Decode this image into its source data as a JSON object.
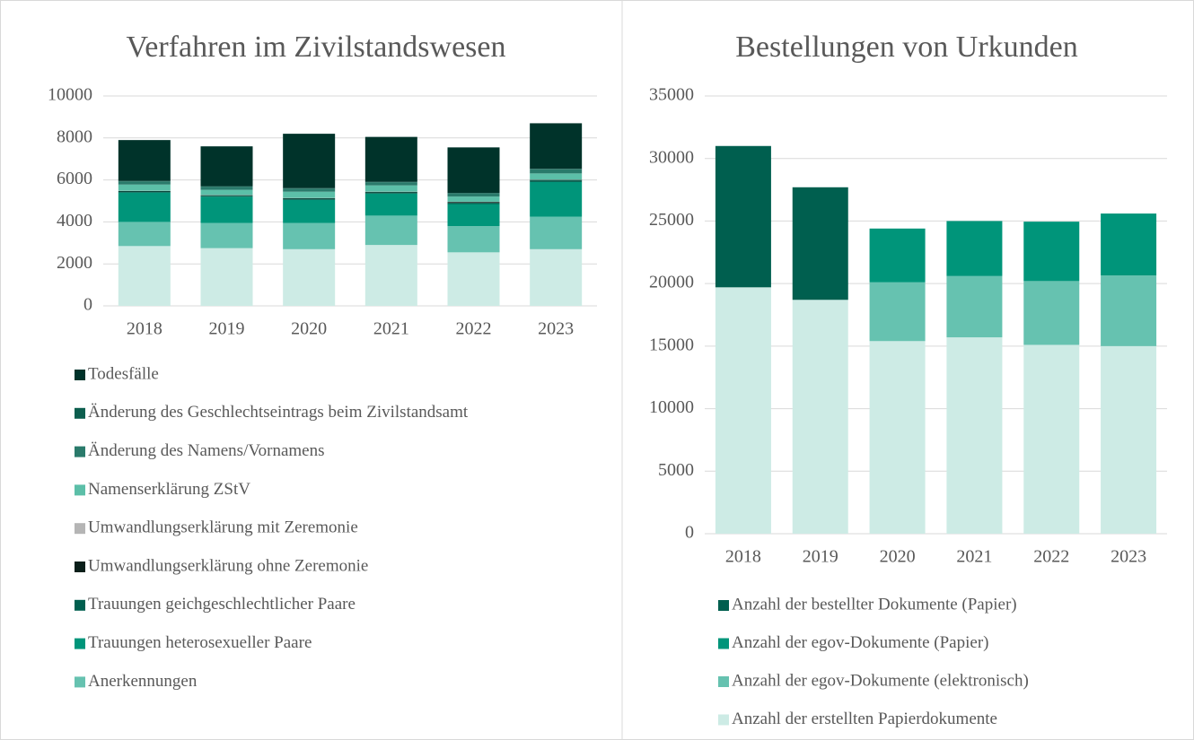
{
  "chart_data": [
    {
      "type": "stacked_bar",
      "title": "Verfahren im Zivilstandswesen",
      "categories": [
        "2018",
        "2019",
        "2020",
        "2021",
        "2022",
        "2023"
      ],
      "ylim": [
        0,
        10000
      ],
      "yticks": [
        0,
        2000,
        4000,
        6000,
        8000,
        10000
      ],
      "grid": true,
      "legend": "bottom",
      "series": [
        {
          "name": null,
          "color": "#cdebe5",
          "values": [
            2850,
            2750,
            2700,
            2900,
            2550,
            2700
          ]
        },
        {
          "name": "Anerkennungen",
          "color": "#66c2b0",
          "values": [
            1150,
            1200,
            1250,
            1400,
            1250,
            1550
          ]
        },
        {
          "name": "Trauungen heterosexueller Paare",
          "color": "#00957a",
          "values": [
            1400,
            1250,
            1100,
            1050,
            1050,
            1650
          ]
        },
        {
          "name": "Trauungen geichgeschlechtlicher Paare",
          "color": "#005f4f",
          "values": [
            50,
            50,
            60,
            60,
            60,
            80
          ]
        },
        {
          "name": "Umwandlungserklärung ohne Zeremonie",
          "color": "#0a1f1a",
          "values": [
            20,
            20,
            20,
            20,
            40,
            20
          ]
        },
        {
          "name": "Umwandlungserklärung mit Zeremonie",
          "color": "#b5b5b5",
          "values": [
            10,
            10,
            10,
            10,
            10,
            10
          ]
        },
        {
          "name": "Namenserklärung ZStV",
          "color": "#5cbfa8",
          "values": [
            300,
            250,
            300,
            300,
            250,
            300
          ]
        },
        {
          "name": "Änderung des Namens/Vornamens",
          "color": "#2a7a6b",
          "values": [
            150,
            150,
            150,
            150,
            150,
            200
          ]
        },
        {
          "name": "Änderung des Geschlechtseintrags beim Zivilstandsamt",
          "color": "#0c5e4e",
          "values": [
            20,
            20,
            20,
            20,
            20,
            20
          ]
        },
        {
          "name": "Todesfälle",
          "color": "#00332a",
          "values": [
            1950,
            1900,
            2590,
            2140,
            2170,
            2170
          ]
        }
      ]
    },
    {
      "type": "stacked_bar",
      "title": "Bestellungen von Urkunden",
      "categories": [
        "2018",
        "2019",
        "2020",
        "2021",
        "2022",
        "2023"
      ],
      "ylim": [
        0,
        35000
      ],
      "yticks": [
        0,
        5000,
        10000,
        15000,
        20000,
        25000,
        30000,
        35000
      ],
      "grid": true,
      "legend": "bottom",
      "series": [
        {
          "name": "Anzahl der erstellten Papierdokumente",
          "color": "#cdebe5",
          "values": [
            19700,
            18700,
            15400,
            15700,
            15100,
            15000
          ]
        },
        {
          "name": "Anzahl der egov-Dokumente (elektronisch)",
          "color": "#66c2b0",
          "values": [
            0,
            0,
            4700,
            4900,
            5100,
            5650
          ]
        },
        {
          "name": "Anzahl der egov-Dokumente (Papier)",
          "color": "#00957a",
          "values": [
            0,
            0,
            4300,
            4400,
            4750,
            4950
          ]
        },
        {
          "name": "Anzahl der bestellter Dokumente (Papier)",
          "color": "#005f4f",
          "values": [
            11300,
            9000,
            0,
            0,
            0,
            0
          ]
        }
      ]
    }
  ]
}
